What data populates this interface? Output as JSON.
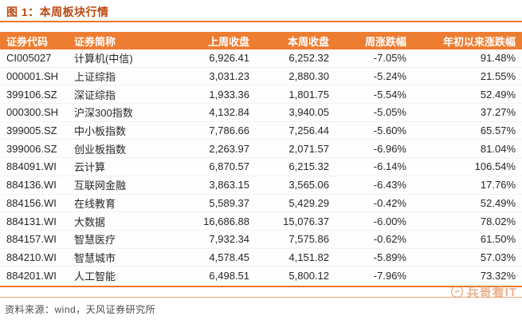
{
  "figure": {
    "title": "图 1：本周板块行情"
  },
  "table": {
    "columns": [
      {
        "key": "code",
        "label": "证券代码",
        "align": "left"
      },
      {
        "key": "name",
        "label": "证券简称",
        "align": "left"
      },
      {
        "key": "prev_close",
        "label": "上周收盘",
        "align": "right"
      },
      {
        "key": "week_close",
        "label": "本周收盘",
        "align": "right"
      },
      {
        "key": "week_chg",
        "label": "周涨跌幅",
        "align": "right"
      },
      {
        "key": "ytd_chg",
        "label": "年初以来涨跌幅",
        "align": "right"
      }
    ],
    "rows": [
      {
        "code": "CI005027",
        "name": "计算机(中信)",
        "prev_close": "6,926.41",
        "week_close": "6,252.32",
        "week_chg": "-7.05%",
        "ytd_chg": "91.48%"
      },
      {
        "code": "000001.SH",
        "name": "上证综指",
        "prev_close": "3,031.23",
        "week_close": "2,880.30",
        "week_chg": "-5.24%",
        "ytd_chg": "21.55%"
      },
      {
        "code": "399106.SZ",
        "name": "深证综指",
        "prev_close": "1,933.36",
        "week_close": "1,801.75",
        "week_chg": "-5.54%",
        "ytd_chg": "52.49%"
      },
      {
        "code": "000300.SH",
        "name": "沪深300指数",
        "prev_close": "4,132.84",
        "week_close": "3,940.05",
        "week_chg": "-5.05%",
        "ytd_chg": "37.27%"
      },
      {
        "code": "399005.SZ",
        "name": "中小板指数",
        "prev_close": "7,786.66",
        "week_close": "7,256.44",
        "week_chg": "-5.60%",
        "ytd_chg": "65.57%"
      },
      {
        "code": "399006.SZ",
        "name": "创业板指数",
        "prev_close": "2,263.97",
        "week_close": "2,071.57",
        "week_chg": "-6.96%",
        "ytd_chg": "81.04%"
      },
      {
        "code": "884091.WI",
        "name": "云计算",
        "prev_close": "6,870.57",
        "week_close": "6,215.32",
        "week_chg": "-6.14%",
        "ytd_chg": "106.54%"
      },
      {
        "code": "884136.WI",
        "name": "互联网金融",
        "prev_close": "3,863.15",
        "week_close": "3,565.06",
        "week_chg": "-6.43%",
        "ytd_chg": "17.76%"
      },
      {
        "code": "884156.WI",
        "name": "在线教育",
        "prev_close": "5,589.37",
        "week_close": "5,429.29",
        "week_chg": "-0.42%",
        "ytd_chg": "52.49%"
      },
      {
        "code": "884131.WI",
        "name": "大数据",
        "prev_close": "16,686.88",
        "week_close": "15,076.37",
        "week_chg": "-6.00%",
        "ytd_chg": "78.02%"
      },
      {
        "code": "884157.WI",
        "name": "智慧医疗",
        "prev_close": "7,932.34",
        "week_close": "7,575.86",
        "week_chg": "-0.62%",
        "ytd_chg": "61.50%"
      },
      {
        "code": "884210.WI",
        "name": "智慧城市",
        "prev_close": "4,578.45",
        "week_close": "4,151.82",
        "week_chg": "-5.89%",
        "ytd_chg": "57.03%"
      },
      {
        "code": "884201.WI",
        "name": "人工智能",
        "prev_close": "6,498.51",
        "week_close": "5,800.12",
        "week_chg": "-7.96%",
        "ytd_chg": "73.32%"
      }
    ]
  },
  "footer": {
    "source": "资料来源：wind，天风证券研究所"
  },
  "watermark": {
    "text": "兵哥看IT",
    "icon": "swirl-logo-icon"
  },
  "colors": {
    "header_bar": "#ed7d31",
    "rule_orange": "#e8762c",
    "title_text": "#bc4912",
    "watermark_orange": "#e59a67",
    "body_text": "#262626",
    "footer_text": "#4d4d4d"
  }
}
